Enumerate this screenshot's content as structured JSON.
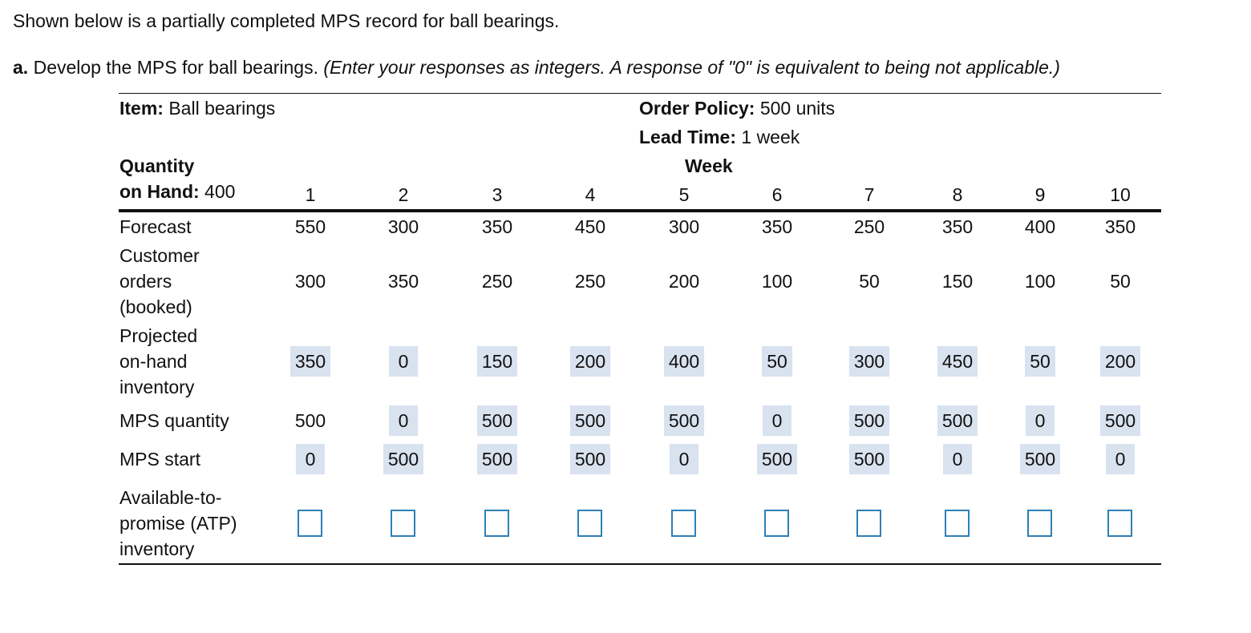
{
  "intro": "Shown below is a partially completed MPS record for ball bearings.",
  "instruction": {
    "prefix": "a.",
    "text": " Develop the MPS for ball bearings. ",
    "note": "(Enter your responses as integers. A response of \"0\" is equivalent to being not applicable.)"
  },
  "header": {
    "item_label": "Item:",
    "item_value": " Ball bearings",
    "order_policy_label": "Order Policy:",
    "order_policy_value": " 500 units",
    "lead_time_label": "Lead Time:",
    "lead_time_value": " 1 week",
    "quantity_label": "Quantity",
    "on_hand_label": "on Hand:",
    "on_hand_value": " 400",
    "week_label": "Week"
  },
  "weeks": [
    "1",
    "2",
    "3",
    "4",
    "5",
    "6",
    "7",
    "8",
    "9",
    "10"
  ],
  "rows": {
    "forecast": {
      "label": "Forecast",
      "values": [
        "550",
        "300",
        "350",
        "450",
        "300",
        "350",
        "250",
        "350",
        "400",
        "350"
      ]
    },
    "customer_orders": {
      "label_lines": [
        "Customer",
        "orders",
        "(booked)"
      ],
      "values": [
        "300",
        "350",
        "250",
        "250",
        "200",
        "100",
        "50",
        "150",
        "100",
        "50"
      ]
    },
    "projected_on_hand": {
      "label_lines": [
        "Projected",
        "on-hand",
        "inventory"
      ],
      "values": [
        "350",
        "0",
        "150",
        "200",
        "400",
        "50",
        "300",
        "450",
        "50",
        "200"
      ]
    },
    "mps_quantity": {
      "label": "MPS quantity",
      "values": [
        "500",
        "0",
        "500",
        "500",
        "500",
        "0",
        "500",
        "500",
        "0",
        "500"
      ]
    },
    "mps_start": {
      "label": "MPS start",
      "values": [
        "0",
        "500",
        "500",
        "500",
        "0",
        "500",
        "500",
        "0",
        "500",
        "0"
      ]
    },
    "atp": {
      "label_lines": [
        "Available-to-",
        "promise (ATP)",
        "inventory"
      ],
      "values": [
        "",
        "",
        "",
        "",
        "",
        "",
        "",
        "",
        "",
        ""
      ]
    }
  },
  "colors": {
    "highlight": "#d9e2ef",
    "input_border": "#2f7fb8"
  }
}
